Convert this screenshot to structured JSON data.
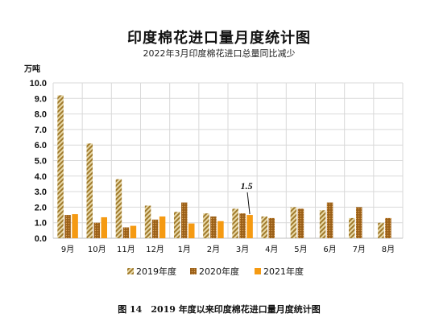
{
  "chart_data": {
    "type": "bar",
    "title": "印度棉花进口量月度统计图",
    "subtitle": "2022年3月印度棉花进口总量同比减少",
    "unit_label": "万吨",
    "ylim": [
      0,
      10
    ],
    "yticks": [
      "0.0",
      "1.0",
      "2.0",
      "3.0",
      "4.0",
      "5.0",
      "6.0",
      "7.0",
      "8.0",
      "9.0",
      "10.0"
    ],
    "grid": true,
    "legend_position": "bottom",
    "categories": [
      "9月",
      "10月",
      "11月",
      "12月",
      "1月",
      "2月",
      "3月",
      "4月",
      "5月",
      "6月",
      "7月",
      "8月"
    ],
    "series": [
      {
        "name": "2019年度",
        "color": "#b08c3c",
        "pattern": "diagonal-stripes",
        "values": [
          9.2,
          6.1,
          3.8,
          2.1,
          1.7,
          1.6,
          1.9,
          1.4,
          2.0,
          1.8,
          1.3,
          1.0
        ]
      },
      {
        "name": "2020年度",
        "color": "#a8681c",
        "pattern": "dotted",
        "values": [
          1.5,
          1.0,
          0.7,
          1.2,
          2.3,
          1.4,
          1.6,
          1.3,
          1.9,
          2.3,
          2.0,
          1.3
        ]
      },
      {
        "name": "2021年度",
        "color": "#f59a12",
        "pattern": "solid",
        "values": [
          1.55,
          1.35,
          0.8,
          1.4,
          0.95,
          1.1,
          1.5,
          null,
          null,
          null,
          null,
          null
        ]
      }
    ],
    "annotation": {
      "text": "1.5",
      "category": "3月",
      "series": "2021年度"
    }
  },
  "caption": "图 14　2019 年度以来印度棉花进口量月度统计图"
}
